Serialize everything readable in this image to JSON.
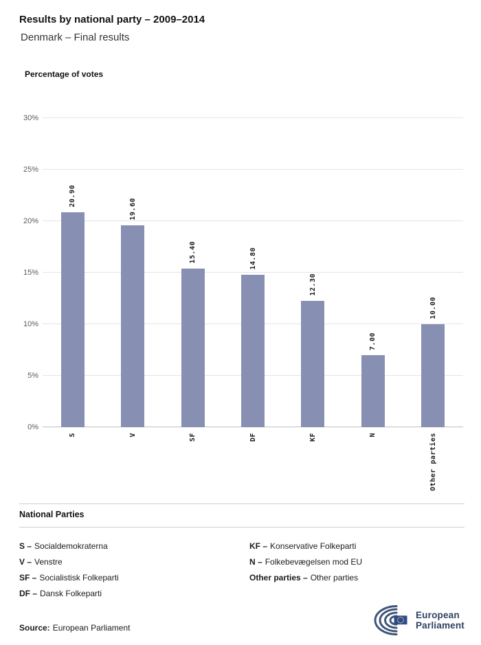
{
  "header": {
    "title": "Results by national party – 2009–2014",
    "subtitle": "Denmark – Final results"
  },
  "chart_data": {
    "type": "bar",
    "title": "Percentage of votes",
    "categories": [
      "S",
      "V",
      "SF",
      "DF",
      "KF",
      "N",
      "Other parties"
    ],
    "values": [
      20.9,
      19.6,
      15.4,
      14.8,
      12.3,
      7.0,
      10.0
    ],
    "value_labels": [
      "20.90",
      "19.60",
      "15.40",
      "14.80",
      "12.30",
      "7.00",
      "10.00"
    ],
    "xlabel": "",
    "ylabel": "Percentage of votes",
    "ylim": [
      0,
      30
    ],
    "yticks": [
      "0%",
      "5%",
      "10%",
      "15%",
      "20%",
      "25%",
      "30%"
    ],
    "grid": true,
    "bar_color": "#8790b3",
    "legend_position": "below"
  },
  "legend": {
    "heading": "National Parties",
    "items": [
      {
        "abbr": "S –",
        "name": "Socialdemokraterna"
      },
      {
        "abbr": "V –",
        "name": "Venstre"
      },
      {
        "abbr": "SF –",
        "name": "Socialistisk Folkeparti"
      },
      {
        "abbr": "DF –",
        "name": "Dansk Folkeparti"
      },
      {
        "abbr": "KF –",
        "name": "Konservative Folkeparti"
      },
      {
        "abbr": "N –",
        "name": "Folkebevægelsen mod EU"
      },
      {
        "abbr": "Other parties –",
        "name": "Other parties"
      }
    ]
  },
  "footer": {
    "source_label": "Source:",
    "source_value": "European Parliament",
    "logo_line1": "European",
    "logo_line2": "Parliament"
  }
}
